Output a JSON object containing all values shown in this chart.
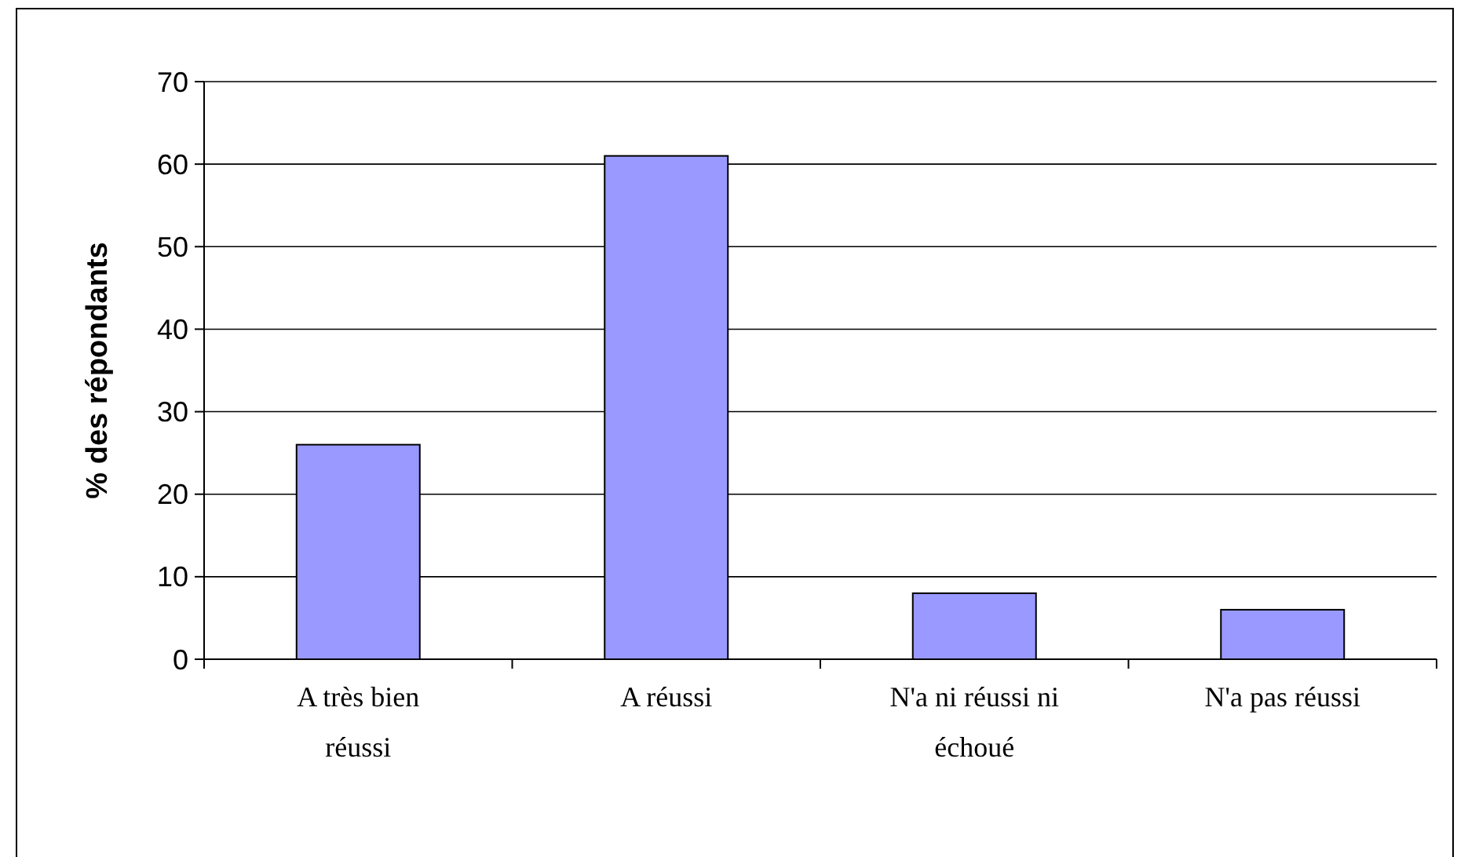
{
  "chart_data": {
    "type": "bar",
    "ylabel": "% des répondants",
    "categories": [
      "A très bien réussi",
      "A réussi",
      "N'a ni réussi ni échoué",
      "N'a pas réussi"
    ],
    "values": [
      26,
      61,
      8,
      6
    ],
    "color": "#9999ff",
    "ylim": [
      0,
      70
    ],
    "yticks": [
      0,
      10,
      20,
      30,
      40,
      50,
      60,
      70
    ],
    "grid": "y"
  }
}
